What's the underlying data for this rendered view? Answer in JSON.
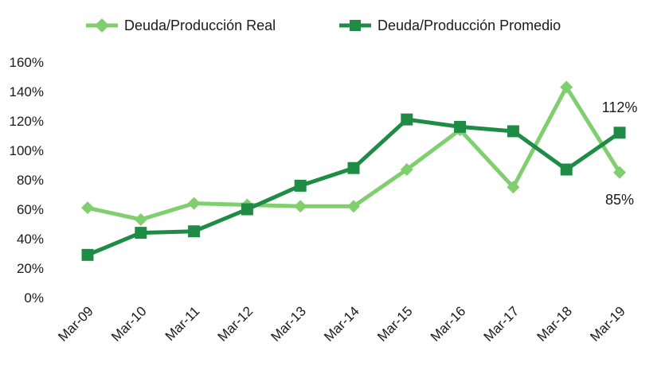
{
  "chart_data": {
    "type": "line",
    "categories": [
      "Mar-09",
      "Mar-10",
      "Mar-11",
      "Mar-12",
      "Mar-13",
      "Mar-14",
      "Mar-15",
      "Mar-16",
      "Mar-17",
      "Mar-18",
      "Mar-19"
    ],
    "series": [
      {
        "name": "Deuda/Producción Real",
        "color": "#7fcf6f",
        "marker": "diamond",
        "values": [
          61,
          53,
          64,
          63,
          62,
          62,
          87,
          114,
          75,
          143,
          85
        ]
      },
      {
        "name": "Deuda/Producción Promedio",
        "color": "#1e8c45",
        "marker": "square",
        "values": [
          29,
          44,
          45,
          60,
          76,
          88,
          121,
          116,
          113,
          87,
          112
        ]
      }
    ],
    "ylim": [
      0,
      160
    ],
    "yticks": [
      "0%",
      "20%",
      "40%",
      "60%",
      "80%",
      "100%",
      "120%",
      "140%",
      "160%"
    ],
    "title": "",
    "xlabel": "",
    "ylabel": "",
    "grid": false,
    "legend_position": "top",
    "annotations": {
      "promedio_last": "112%",
      "real_last": "85%"
    }
  }
}
